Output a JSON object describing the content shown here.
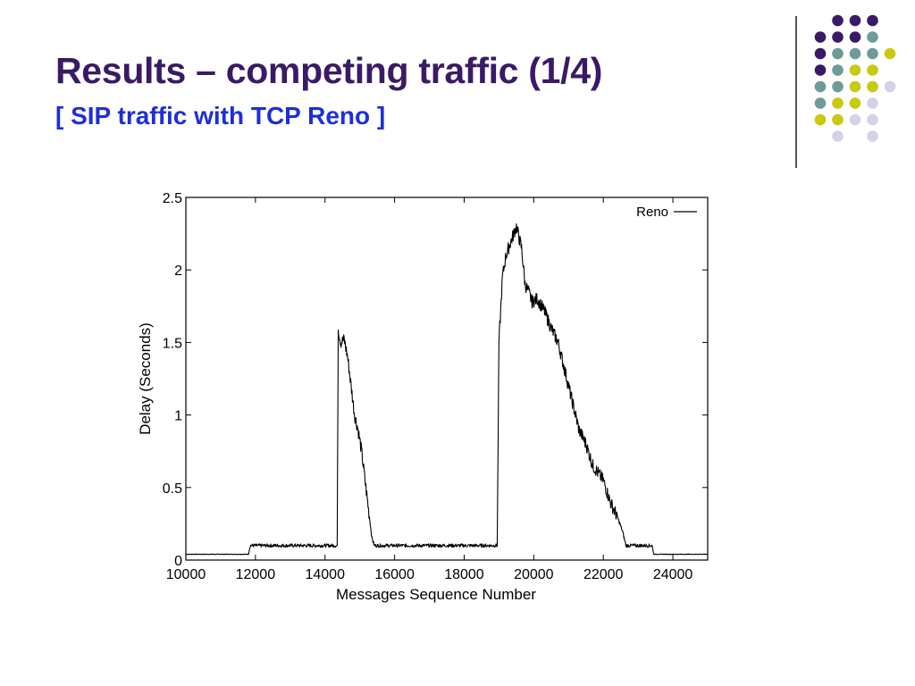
{
  "slide": {
    "title": "Results – competing traffic (1/4)",
    "subtitle": "[ SIP traffic with TCP Reno ]",
    "colors": {
      "title": "#3a1a66",
      "subtitle": "#1e2fd6",
      "dot_purple": "#3a1a66",
      "dot_teal": "#6f9a9a",
      "dot_yellow": "#c9c90f",
      "dot_lavender": "#d3d3e6"
    }
  },
  "chart_data": {
    "type": "line",
    "xlabel": "Messages Sequence Number",
    "ylabel": "Delay (Seconds)",
    "xlim": [
      10000,
      25000
    ],
    "ylim": [
      0,
      2.5
    ],
    "xticks": [
      10000,
      12000,
      14000,
      16000,
      18000,
      20000,
      22000,
      24000
    ],
    "yticks": [
      0,
      0.5,
      1,
      1.5,
      2,
      2.5
    ],
    "ytick_labels": [
      "0",
      "0.5",
      "1",
      "1.5",
      "2",
      "2.5"
    ],
    "grid": false,
    "legend_position": "top-right",
    "series": [
      {
        "name": "Reno",
        "color": "#000000",
        "points": [
          [
            10000,
            0.04
          ],
          [
            11800,
            0.04
          ],
          [
            11850,
            0.1
          ],
          [
            12000,
            0.1
          ],
          [
            12500,
            0.1
          ],
          [
            13000,
            0.1
          ],
          [
            13500,
            0.1
          ],
          [
            14000,
            0.1
          ],
          [
            14350,
            0.1
          ],
          [
            14380,
            1.6
          ],
          [
            14450,
            1.5
          ],
          [
            14550,
            1.52
          ],
          [
            14650,
            1.4
          ],
          [
            14750,
            1.2
          ],
          [
            14850,
            1.0
          ],
          [
            14950,
            0.9
          ],
          [
            15050,
            0.75
          ],
          [
            15150,
            0.55
          ],
          [
            15250,
            0.35
          ],
          [
            15350,
            0.15
          ],
          [
            15420,
            0.1
          ],
          [
            16000,
            0.1
          ],
          [
            17000,
            0.1
          ],
          [
            18000,
            0.1
          ],
          [
            18950,
            0.1
          ],
          [
            19000,
            1.5
          ],
          [
            19100,
            1.95
          ],
          [
            19200,
            2.1
          ],
          [
            19350,
            2.2
          ],
          [
            19500,
            2.3
          ],
          [
            19650,
            2.15
          ],
          [
            19750,
            1.9
          ],
          [
            19850,
            1.85
          ],
          [
            19950,
            1.78
          ],
          [
            20100,
            1.8
          ],
          [
            20300,
            1.72
          ],
          [
            20500,
            1.6
          ],
          [
            20700,
            1.5
          ],
          [
            20900,
            1.3
          ],
          [
            21100,
            1.1
          ],
          [
            21300,
            0.9
          ],
          [
            21500,
            0.8
          ],
          [
            21700,
            0.65
          ],
          [
            21850,
            0.6
          ],
          [
            22000,
            0.55
          ],
          [
            22200,
            0.4
          ],
          [
            22400,
            0.3
          ],
          [
            22550,
            0.2
          ],
          [
            22650,
            0.1
          ],
          [
            23000,
            0.1
          ],
          [
            23400,
            0.1
          ],
          [
            23450,
            0.04
          ],
          [
            25000,
            0.04
          ]
        ]
      }
    ]
  }
}
